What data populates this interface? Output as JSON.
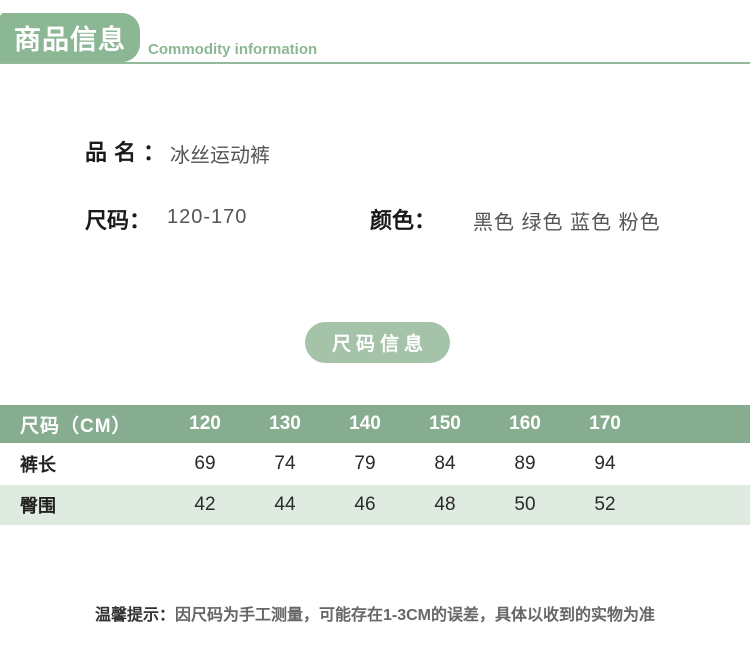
{
  "colors": {
    "badge_green": "#8cb795",
    "divider_green": "#93b99b",
    "pill_green": "#a5c3a8",
    "table_header_green": "#87ad90",
    "table_row_alt_green": "#dfeae0"
  },
  "header": {
    "title": "商品信息",
    "subtitle": "Commodity information"
  },
  "product": {
    "name_label": "品名：",
    "name_value": "冰丝运动裤",
    "size_label": "尺码：",
    "size_value": "120-170",
    "color_label": "颜色：",
    "color_value": "黑色 绿色 蓝色 粉色"
  },
  "size_section": {
    "badge_label": "尺码信息"
  },
  "size_table": {
    "header": [
      "尺码（CM）",
      "120",
      "130",
      "140",
      "150",
      "160",
      "170"
    ],
    "rows": [
      {
        "label": "裤长",
        "values": [
          "69",
          "74",
          "79",
          "84",
          "89",
          "94"
        ]
      },
      {
        "label": "臀围",
        "values": [
          "42",
          "44",
          "46",
          "48",
          "50",
          "52"
        ]
      }
    ]
  },
  "tip": {
    "label": "温馨提示：",
    "text": "因尺码为手工测量，可能存在1-3CM的误差，具体以收到的实物为准"
  }
}
